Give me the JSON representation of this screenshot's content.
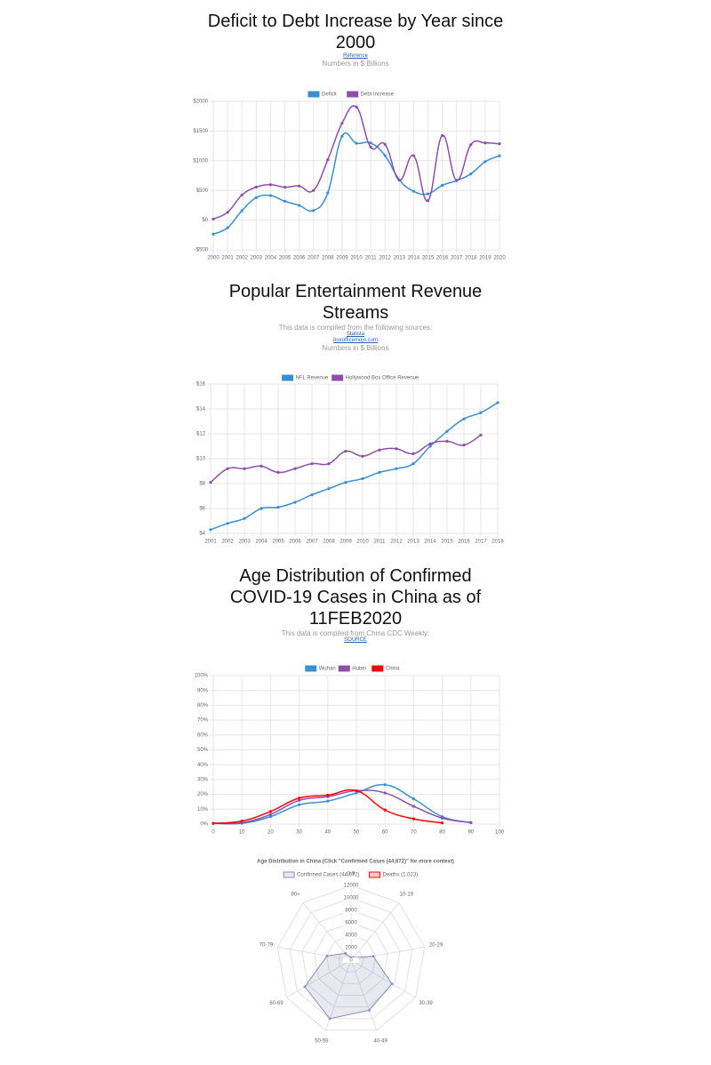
{
  "chart_data": [
    {
      "type": "line",
      "title": "Deficit to Debt Increase by Year since 2000",
      "links": [
        "Reference"
      ],
      "note": "Numbers in $ Billions",
      "categories": [
        "2000",
        "2001",
        "2002",
        "2003",
        "2004",
        "2005",
        "2006",
        "2007",
        "2008",
        "2009",
        "2010",
        "2011",
        "2012",
        "2013",
        "2014",
        "2015",
        "2016",
        "2017",
        "2018",
        "2019",
        "2020"
      ],
      "series": [
        {
          "name": "Deficit",
          "color": "#3a8fd1",
          "values": [
            -236,
            -128,
            158,
            378,
            413,
            318,
            248,
            161,
            459,
            1413,
            1294,
            1300,
            1087,
            680,
            485,
            442,
            585,
            665,
            779,
            984,
            1083
          ]
        },
        {
          "name": "Debt Increase",
          "color": "#8e4fa8",
          "values": [
            18,
            133,
            421,
            555,
            596,
            554,
            574,
            501,
            1017,
            1632,
            1905,
            1229,
            1276,
            672,
            1086,
            327,
            1423,
            671,
            1271,
            1300,
            1285
          ]
        }
      ],
      "ylim": [
        -500,
        2000
      ],
      "yticks": [
        {
          "value": -500,
          "label": "-$500"
        },
        {
          "value": 0,
          "label": "$0"
        },
        {
          "value": 500,
          "label": "$500"
        },
        {
          "value": 1000,
          "label": "$1000"
        },
        {
          "value": 1500,
          "label": "$1500"
        },
        {
          "value": 2000,
          "label": "$2000"
        }
      ],
      "grid": true,
      "legend_position": "top"
    },
    {
      "type": "line",
      "title": "Popular Entertainment Revenue Streams",
      "subtitle": "This data is compiled from the following sources:",
      "links": [
        "Statista",
        "boxofficemojo.com"
      ],
      "note": "Numbers in $ Billions",
      "categories": [
        "2001",
        "2002",
        "2003",
        "2004",
        "2005",
        "2006",
        "2007",
        "2008",
        "2009",
        "2010",
        "2011",
        "2012",
        "2013",
        "2014",
        "2015",
        "2016",
        "2017",
        "2018"
      ],
      "series": [
        {
          "name": "NFL Revenue",
          "color": "#3a8fd1",
          "values": [
            4.3,
            4.8,
            5.2,
            6.0,
            6.1,
            6.5,
            7.1,
            7.6,
            8.1,
            8.4,
            8.9,
            9.2,
            9.6,
            11.0,
            12.2,
            13.2,
            13.7,
            14.5
          ]
        },
        {
          "name": "Hollywood Box Office Revenue",
          "color": "#8e4fa8",
          "values": [
            8.1,
            9.2,
            9.2,
            9.4,
            8.9,
            9.2,
            9.6,
            9.6,
            10.6,
            10.2,
            10.7,
            10.8,
            10.4,
            11.2,
            11.4,
            11.1,
            11.9,
            null
          ]
        }
      ],
      "ylim": [
        4,
        16
      ],
      "yticks": [
        {
          "value": 4,
          "label": "$4"
        },
        {
          "value": 6,
          "label": "$6"
        },
        {
          "value": 8,
          "label": "$8"
        },
        {
          "value": 10,
          "label": "$10"
        },
        {
          "value": 12,
          "label": "$12"
        },
        {
          "value": 14,
          "label": "$14"
        },
        {
          "value": 16,
          "label": "$16"
        }
      ],
      "grid": true,
      "legend_position": "top"
    },
    {
      "type": "line",
      "title": "Age Distribution of Confirmed COVID-19 Cases in China as of 11FEB2020",
      "subtitle": "This data is compiled from China CDC Weekly:",
      "links": [
        "SOURCE"
      ],
      "x": [
        0,
        10,
        20,
        30,
        40,
        50,
        60,
        70,
        80,
        90
      ],
      "series": [
        {
          "name": "Wuhan",
          "color": "#3a8fd1",
          "values": [
            0.5,
            0.5,
            5,
            13,
            15.5,
            21,
            26.5,
            17,
            5,
            1
          ]
        },
        {
          "name": "Hubei",
          "color": "#8e4fa8",
          "values": [
            0.5,
            1,
            6.5,
            16,
            18.5,
            22.5,
            21,
            12,
            4,
            1
          ]
        },
        {
          "name": "China",
          "color": "#ff0000",
          "values": [
            0.5,
            2,
            8.5,
            17.5,
            19.5,
            22.5,
            9.5,
            3.5,
            0.8,
            null
          ]
        }
      ],
      "xlim": [
        0,
        100
      ],
      "xticks": [
        0,
        10,
        20,
        30,
        40,
        50,
        60,
        70,
        80,
        90,
        100
      ],
      "ylim": [
        0,
        100
      ],
      "yticks": [
        {
          "value": 0,
          "label": "0%"
        },
        {
          "value": 10,
          "label": "10%"
        },
        {
          "value": 20,
          "label": "20%"
        },
        {
          "value": 30,
          "label": "30%"
        },
        {
          "value": 40,
          "label": "40%"
        },
        {
          "value": 50,
          "label": "50%"
        },
        {
          "value": 60,
          "label": "60%"
        },
        {
          "value": 70,
          "label": "70%"
        },
        {
          "value": 80,
          "label": "80%"
        },
        {
          "value": 90,
          "label": "90%"
        },
        {
          "value": 100,
          "label": "100%"
        }
      ],
      "grid": true,
      "legend_position": "top"
    },
    {
      "type": "radar",
      "title": "Age Distribution in China (Click \"Confirmed Cases (44,672)\" for more context)",
      "categories": [
        "0-9",
        "10-19",
        "20-29",
        "30-39",
        "40-49",
        "50-59",
        "60-69",
        "70-79",
        "80+"
      ],
      "series": [
        {
          "name": "Confirmed Cases (44,672)",
          "color": "#8e8eb4",
          "values": [
            416,
            549,
            3619,
            7600,
            8571,
            10008,
            8583,
            3918,
            1408
          ]
        },
        {
          "name": "Deaths (1,023)",
          "color": "#ff0000",
          "values": [
            0,
            1,
            7,
            18,
            38,
            130,
            309,
            312,
            208
          ]
        }
      ],
      "rlim": [
        0,
        12000
      ],
      "rticks": [
        0,
        2000,
        4000,
        6000,
        8000,
        10000,
        12000
      ],
      "legend_position": "top"
    }
  ]
}
